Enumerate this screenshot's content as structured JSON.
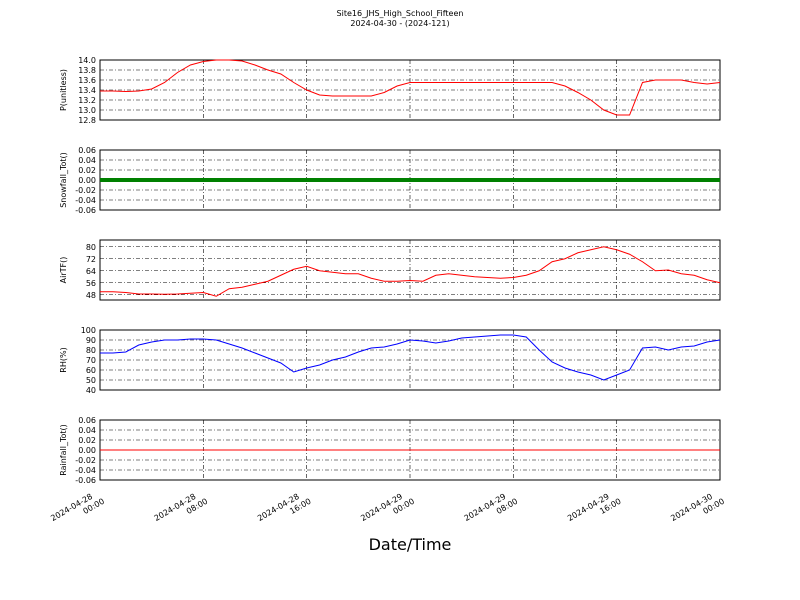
{
  "title": "Site16_JHS_High_School_Fifteen",
  "subtitle": "2024-04-30 - (2024-121)",
  "xlabel": "Date/Time",
  "chart_data": [
    {
      "type": "line",
      "ylabel": "P(unitless)",
      "color": "#ff0000",
      "line_width": 1,
      "xlim": [
        "2024-04-28 00:00",
        "2024-04-30 00:00"
      ],
      "xticks": [
        "2024-04-28 00:00",
        "2024-04-28 08:00",
        "2024-04-28 16:00",
        "2024-04-29 00:00",
        "2024-04-29 08:00",
        "2024-04-29 16:00",
        "2024-04-30 00:00"
      ],
      "ylim": [
        12.8,
        14.0
      ],
      "yticks": [
        {
          "value": 12.8,
          "label": "12.8"
        },
        {
          "value": 13.0,
          "label": "13.0"
        },
        {
          "value": 13.2,
          "label": "13.2"
        },
        {
          "value": 13.4,
          "label": "13.4"
        },
        {
          "value": 13.6,
          "label": "13.6"
        },
        {
          "value": 13.8,
          "label": "13.8"
        },
        {
          "value": 14.0,
          "label": "14.0"
        }
      ],
      "x": [
        "2024-04-28 00:00",
        "2024-04-28 01:00",
        "2024-04-28 02:00",
        "2024-04-28 03:00",
        "2024-04-28 04:00",
        "2024-04-28 05:00",
        "2024-04-28 06:00",
        "2024-04-28 07:00",
        "2024-04-28 08:00",
        "2024-04-28 09:00",
        "2024-04-28 10:00",
        "2024-04-28 11:00",
        "2024-04-28 12:00",
        "2024-04-28 13:00",
        "2024-04-28 14:00",
        "2024-04-28 15:00",
        "2024-04-28 16:00",
        "2024-04-28 17:00",
        "2024-04-28 18:00",
        "2024-04-28 19:00",
        "2024-04-28 20:00",
        "2024-04-28 21:00",
        "2024-04-28 22:00",
        "2024-04-28 23:00",
        "2024-04-29 00:00",
        "2024-04-29 01:00",
        "2024-04-29 02:00",
        "2024-04-29 03:00",
        "2024-04-29 04:00",
        "2024-04-29 05:00",
        "2024-04-29 06:00",
        "2024-04-29 07:00",
        "2024-04-29 08:00",
        "2024-04-29 09:00",
        "2024-04-29 10:00",
        "2024-04-29 11:00",
        "2024-04-29 12:00",
        "2024-04-29 13:00",
        "2024-04-29 14:00",
        "2024-04-29 15:00",
        "2024-04-29 16:00",
        "2024-04-29 17:00",
        "2024-04-29 18:00",
        "2024-04-29 19:00",
        "2024-04-29 20:00",
        "2024-04-29 21:00",
        "2024-04-29 22:00",
        "2024-04-29 23:00",
        "2024-04-30 00:00"
      ],
      "values": [
        13.38,
        13.38,
        13.37,
        13.38,
        13.42,
        13.55,
        13.75,
        13.9,
        13.97,
        14.0,
        14.0,
        13.98,
        13.9,
        13.8,
        13.72,
        13.55,
        13.4,
        13.3,
        13.28,
        13.28,
        13.28,
        13.28,
        13.35,
        13.48,
        13.55,
        13.55,
        13.55,
        13.55,
        13.55,
        13.55,
        13.55,
        13.55,
        13.55,
        13.55,
        13.55,
        13.55,
        13.48,
        13.35,
        13.2,
        13.0,
        12.9,
        12.9,
        13.55,
        13.6,
        13.6,
        13.6,
        13.55,
        13.52,
        13.55
      ]
    },
    {
      "type": "line",
      "ylabel": "Snowfall_Tot()",
      "color": "#008000",
      "line_width": 4,
      "xlim": [
        "2024-04-28 00:00",
        "2024-04-30 00:00"
      ],
      "xticks": [
        "2024-04-28 00:00",
        "2024-04-28 08:00",
        "2024-04-28 16:00",
        "2024-04-29 00:00",
        "2024-04-29 08:00",
        "2024-04-29 16:00",
        "2024-04-30 00:00"
      ],
      "ylim": [
        -0.06,
        0.06
      ],
      "yticks": [
        {
          "value": -0.06,
          "label": "-0.06"
        },
        {
          "value": -0.04,
          "label": "-0.04"
        },
        {
          "value": -0.02,
          "label": "-0.02"
        },
        {
          "value": 0,
          "label": "0.00"
        },
        {
          "value": 0.02,
          "label": "0.02"
        },
        {
          "value": 0.04,
          "label": "0.04"
        },
        {
          "value": 0.06,
          "label": "0.06"
        }
      ],
      "x": [
        "2024-04-28 00:00",
        "2024-04-28 01:00",
        "2024-04-28 02:00",
        "2024-04-28 03:00",
        "2024-04-28 04:00",
        "2024-04-28 05:00",
        "2024-04-28 06:00",
        "2024-04-28 07:00",
        "2024-04-28 08:00",
        "2024-04-28 09:00",
        "2024-04-28 10:00",
        "2024-04-28 11:00",
        "2024-04-28 12:00",
        "2024-04-28 13:00",
        "2024-04-28 14:00",
        "2024-04-28 15:00",
        "2024-04-28 16:00",
        "2024-04-28 17:00",
        "2024-04-28 18:00",
        "2024-04-28 19:00",
        "2024-04-28 20:00",
        "2024-04-28 21:00",
        "2024-04-28 22:00",
        "2024-04-28 23:00",
        "2024-04-29 00:00",
        "2024-04-29 01:00",
        "2024-04-29 02:00",
        "2024-04-29 03:00",
        "2024-04-29 04:00",
        "2024-04-29 05:00",
        "2024-04-29 06:00",
        "2024-04-29 07:00",
        "2024-04-29 08:00",
        "2024-04-29 09:00",
        "2024-04-29 10:00",
        "2024-04-29 11:00",
        "2024-04-29 12:00",
        "2024-04-29 13:00",
        "2024-04-29 14:00",
        "2024-04-29 15:00",
        "2024-04-29 16:00",
        "2024-04-29 17:00",
        "2024-04-29 18:00",
        "2024-04-29 19:00",
        "2024-04-29 20:00",
        "2024-04-29 21:00",
        "2024-04-29 22:00",
        "2024-04-29 23:00",
        "2024-04-30 00:00"
      ],
      "values": [
        0,
        0,
        0,
        0,
        0,
        0,
        0,
        0,
        0,
        0,
        0,
        0,
        0,
        0,
        0,
        0,
        0,
        0,
        0,
        0,
        0,
        0,
        0,
        0,
        0,
        0,
        0,
        0,
        0,
        0,
        0,
        0,
        0,
        0,
        0,
        0,
        0,
        0,
        0,
        0,
        0,
        0,
        0,
        0,
        0,
        0,
        0,
        0,
        0
      ]
    },
    {
      "type": "line",
      "ylabel": "AirTF()",
      "color": "#ff0000",
      "line_width": 1,
      "xlim": [
        "2024-04-28 00:00",
        "2024-04-30 00:00"
      ],
      "xticks": [
        "2024-04-28 00:00",
        "2024-04-28 08:00",
        "2024-04-28 16:00",
        "2024-04-29 00:00",
        "2024-04-29 08:00",
        "2024-04-29 16:00",
        "2024-04-30 00:00"
      ],
      "ylim": [
        44.5,
        84.5
      ],
      "yticks": [
        48,
        56,
        64,
        72,
        80
      ],
      "x": [
        "2024-04-28 00:00",
        "2024-04-28 01:00",
        "2024-04-28 02:00",
        "2024-04-28 03:00",
        "2024-04-28 04:00",
        "2024-04-28 05:00",
        "2024-04-28 06:00",
        "2024-04-28 07:00",
        "2024-04-28 08:00",
        "2024-04-28 09:00",
        "2024-04-28 10:00",
        "2024-04-28 11:00",
        "2024-04-28 12:00",
        "2024-04-28 13:00",
        "2024-04-28 14:00",
        "2024-04-28 15:00",
        "2024-04-28 16:00",
        "2024-04-28 17:00",
        "2024-04-28 18:00",
        "2024-04-28 19:00",
        "2024-04-28 20:00",
        "2024-04-28 21:00",
        "2024-04-28 22:00",
        "2024-04-28 23:00",
        "2024-04-29 00:00",
        "2024-04-29 01:00",
        "2024-04-29 02:00",
        "2024-04-29 03:00",
        "2024-04-29 04:00",
        "2024-04-29 05:00",
        "2024-04-29 06:00",
        "2024-04-29 07:00",
        "2024-04-29 08:00",
        "2024-04-29 09:00",
        "2024-04-29 10:00",
        "2024-04-29 11:00",
        "2024-04-29 12:00",
        "2024-04-29 13:00",
        "2024-04-29 14:00",
        "2024-04-29 15:00",
        "2024-04-29 16:00",
        "2024-04-29 17:00",
        "2024-04-29 18:00",
        "2024-04-29 19:00",
        "2024-04-29 20:00",
        "2024-04-29 21:00",
        "2024-04-29 22:00",
        "2024-04-29 23:00",
        "2024-04-30 00:00"
      ],
      "values": [
        50,
        50,
        49.5,
        48.5,
        48.5,
        48.3,
        48.5,
        49,
        49.5,
        47,
        52,
        53,
        55,
        57,
        61,
        65,
        67,
        64,
        63,
        62,
        62,
        59,
        57,
        57,
        57.5,
        57,
        61,
        62,
        61,
        60,
        59.5,
        59,
        59.5,
        61,
        64,
        70,
        72,
        76,
        78,
        80,
        78,
        75,
        70,
        64,
        64.5,
        62,
        61,
        58,
        56
      ]
    },
    {
      "type": "line",
      "ylabel": "RH(%)",
      "color": "#0000ff",
      "line_width": 1,
      "xlim": [
        "2024-04-28 00:00",
        "2024-04-30 00:00"
      ],
      "xticks": [
        "2024-04-28 00:00",
        "2024-04-28 08:00",
        "2024-04-28 16:00",
        "2024-04-29 00:00",
        "2024-04-29 08:00",
        "2024-04-29 16:00",
        "2024-04-30 00:00"
      ],
      "ylim": [
        40,
        100
      ],
      "yticks": [
        40,
        50,
        60,
        70,
        80,
        90,
        100
      ],
      "x": [
        "2024-04-28 00:00",
        "2024-04-28 01:00",
        "2024-04-28 02:00",
        "2024-04-28 03:00",
        "2024-04-28 04:00",
        "2024-04-28 05:00",
        "2024-04-28 06:00",
        "2024-04-28 07:00",
        "2024-04-28 08:00",
        "2024-04-28 09:00",
        "2024-04-28 10:00",
        "2024-04-28 11:00",
        "2024-04-28 12:00",
        "2024-04-28 13:00",
        "2024-04-28 14:00",
        "2024-04-28 15:00",
        "2024-04-28 16:00",
        "2024-04-28 17:00",
        "2024-04-28 18:00",
        "2024-04-28 19:00",
        "2024-04-28 20:00",
        "2024-04-28 21:00",
        "2024-04-28 22:00",
        "2024-04-28 23:00",
        "2024-04-29 00:00",
        "2024-04-29 01:00",
        "2024-04-29 02:00",
        "2024-04-29 03:00",
        "2024-04-29 04:00",
        "2024-04-29 05:00",
        "2024-04-29 06:00",
        "2024-04-29 07:00",
        "2024-04-29 08:00",
        "2024-04-29 09:00",
        "2024-04-29 10:00",
        "2024-04-29 11:00",
        "2024-04-29 12:00",
        "2024-04-29 13:00",
        "2024-04-29 14:00",
        "2024-04-29 15:00",
        "2024-04-29 16:00",
        "2024-04-29 17:00",
        "2024-04-29 18:00",
        "2024-04-29 19:00",
        "2024-04-29 20:00",
        "2024-04-29 21:00",
        "2024-04-29 22:00",
        "2024-04-29 23:00",
        "2024-04-30 00:00"
      ],
      "values": [
        77,
        77,
        78,
        85,
        88,
        90,
        90,
        91,
        91,
        90,
        86,
        82,
        77,
        72,
        67,
        58,
        62,
        65,
        70,
        73,
        78,
        82,
        83,
        86,
        90,
        89,
        87,
        89,
        92,
        93,
        94,
        95,
        95,
        93,
        80,
        68,
        62,
        58,
        55,
        50,
        55,
        60,
        82,
        83,
        80,
        83,
        84,
        88,
        90
      ]
    },
    {
      "type": "line",
      "ylabel": "Rainfall_Tot()",
      "color": "#ff0000",
      "line_width": 1,
      "xlim": [
        "2024-04-28 00:00",
        "2024-04-30 00:00"
      ],
      "xticks": [
        "2024-04-28 00:00",
        "2024-04-28 08:00",
        "2024-04-28 16:00",
        "2024-04-29 00:00",
        "2024-04-29 08:00",
        "2024-04-29 16:00",
        "2024-04-30 00:00"
      ],
      "ylim": [
        -0.06,
        0.06
      ],
      "yticks": [
        {
          "value": -0.06,
          "label": "-0.06"
        },
        {
          "value": -0.04,
          "label": "-0.04"
        },
        {
          "value": -0.02,
          "label": "-0.02"
        },
        {
          "value": 0,
          "label": "0.00"
        },
        {
          "value": 0.02,
          "label": "0.02"
        },
        {
          "value": 0.04,
          "label": "0.04"
        },
        {
          "value": 0.06,
          "label": "0.06"
        }
      ],
      "x": [
        "2024-04-28 00:00",
        "2024-04-28 01:00",
        "2024-04-28 02:00",
        "2024-04-28 03:00",
        "2024-04-28 04:00",
        "2024-04-28 05:00",
        "2024-04-28 06:00",
        "2024-04-28 07:00",
        "2024-04-28 08:00",
        "2024-04-28 09:00",
        "2024-04-28 10:00",
        "2024-04-28 11:00",
        "2024-04-28 12:00",
        "2024-04-28 13:00",
        "2024-04-28 14:00",
        "2024-04-28 15:00",
        "2024-04-28 16:00",
        "2024-04-28 17:00",
        "2024-04-28 18:00",
        "2024-04-28 19:00",
        "2024-04-28 20:00",
        "2024-04-28 21:00",
        "2024-04-28 22:00",
        "2024-04-28 23:00",
        "2024-04-29 00:00",
        "2024-04-29 01:00",
        "2024-04-29 02:00",
        "2024-04-29 03:00",
        "2024-04-29 04:00",
        "2024-04-29 05:00",
        "2024-04-29 06:00",
        "2024-04-29 07:00",
        "2024-04-29 08:00",
        "2024-04-29 09:00",
        "2024-04-29 10:00",
        "2024-04-29 11:00",
        "2024-04-29 12:00",
        "2024-04-29 13:00",
        "2024-04-29 14:00",
        "2024-04-29 15:00",
        "2024-04-29 16:00",
        "2024-04-29 17:00",
        "2024-04-29 18:00",
        "2024-04-29 19:00",
        "2024-04-29 20:00",
        "2024-04-29 21:00",
        "2024-04-29 22:00",
        "2024-04-29 23:00",
        "2024-04-30 00:00"
      ],
      "values": [
        0,
        0,
        0,
        0,
        0,
        0,
        0,
        0,
        0,
        0,
        0,
        0,
        0,
        0,
        0,
        0,
        0,
        0,
        0,
        0,
        0,
        0,
        0,
        0,
        0,
        0,
        0,
        0,
        0,
        0,
        0,
        0,
        0,
        0,
        0,
        0,
        0,
        0,
        0,
        0,
        0,
        0,
        0,
        0,
        0,
        0,
        0,
        0,
        0
      ]
    }
  ]
}
